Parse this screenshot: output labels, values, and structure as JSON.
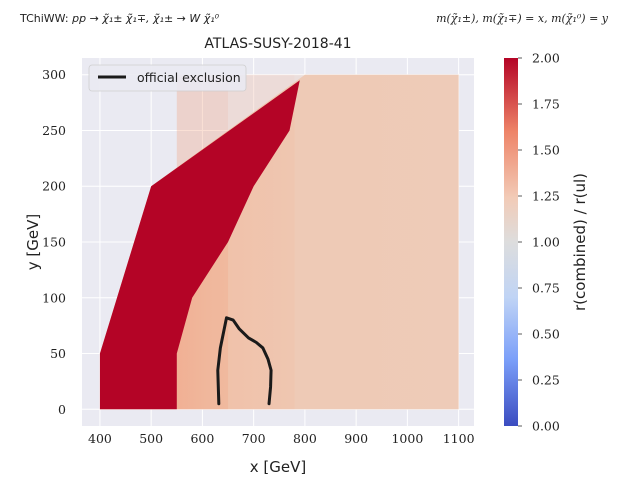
{
  "header": {
    "process_prefix": "TChiWW:",
    "process_formula": "pp → χ̃₁± χ̃₁∓, χ̃₁± → W χ̃₁⁰",
    "mass_relation": "m(χ̃₁±), m(χ̃₁∓) = x, m(χ̃₁⁰) = y"
  },
  "chart_data": {
    "type": "heatmap",
    "title": "ATLAS-SUSY-2018-41",
    "xlabel": "x [GeV]",
    "ylabel": "y [GeV]",
    "xlim": [
      365,
      1130
    ],
    "ylim": [
      -15,
      315
    ],
    "xticks": [
      400,
      500,
      600,
      700,
      800,
      900,
      1000,
      1100
    ],
    "yticks": [
      0,
      50,
      100,
      150,
      200,
      250,
      300
    ],
    "grid": true,
    "colorbar": {
      "label": "r(combined) / r(ul)",
      "range": [
        0.0,
        2.0
      ],
      "ticks": [
        "0.00",
        "0.25",
        "0.50",
        "0.75",
        "1.00",
        "1.25",
        "1.50",
        "1.75",
        "2.00"
      ],
      "colormap": "coolwarm",
      "colors": [
        "#3b4cc0",
        "#7b9ff9",
        "#c0d4f5",
        "#dddddd",
        "#f2cbb7",
        "#ee8468",
        "#b40426"
      ]
    },
    "grid_region": {
      "x_range": [
        400,
        1100
      ],
      "y_range": [
        0,
        300
      ],
      "upper_edge": [
        [
          400,
          50
        ],
        [
          500,
          200
        ],
        [
          800,
          300
        ],
        [
          1100,
          300
        ]
      ]
    },
    "saturated_region": {
      "value": 2.0,
      "boundary": [
        [
          400,
          0
        ],
        [
          400,
          50
        ],
        [
          500,
          200
        ],
        [
          790,
          295
        ],
        [
          770,
          250
        ],
        [
          700,
          200
        ],
        [
          650,
          150
        ],
        [
          580,
          100
        ],
        [
          550,
          50
        ],
        [
          550,
          0
        ]
      ]
    },
    "value_zones": [
      {
        "x_min": 400,
        "x_max": 550,
        "value": 2.0
      },
      {
        "x_min": 550,
        "x_max": 650,
        "value": 1.6
      },
      {
        "x_min": 650,
        "x_max": 780,
        "value": 1.3
      },
      {
        "x_min": 780,
        "x_max": 1100,
        "value": 1.2
      }
    ],
    "series": [
      {
        "name": "official exclusion",
        "color": "#1a1a1a",
        "points": [
          [
            632,
            5
          ],
          [
            630,
            35
          ],
          [
            635,
            55
          ],
          [
            647,
            82
          ],
          [
            660,
            80
          ],
          [
            672,
            72
          ],
          [
            690,
            64
          ],
          [
            705,
            60
          ],
          [
            718,
            55
          ],
          [
            728,
            45
          ],
          [
            734,
            35
          ],
          [
            733,
            20
          ],
          [
            730,
            5
          ]
        ]
      }
    ],
    "legend": {
      "position": "top-left",
      "label": "official exclusion"
    }
  }
}
